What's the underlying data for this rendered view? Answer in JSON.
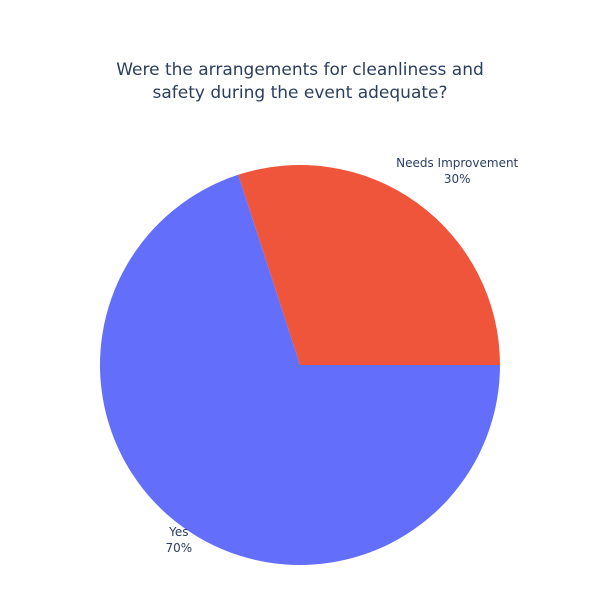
{
  "chart_data": {
    "type": "pie",
    "title_lines": [
      "Were the arrangements for cleanliness and",
      "safety during the event adequate?"
    ],
    "slices": [
      {
        "label": "Needs Improvement",
        "value": 30,
        "percent_text": "30%",
        "color": "#ef553b"
      },
      {
        "label": "Yes",
        "value": 70,
        "percent_text": "70%",
        "color": "#636efa"
      }
    ],
    "direction": "counterclockwise",
    "start_angle_deg": 0,
    "legend": "none"
  }
}
